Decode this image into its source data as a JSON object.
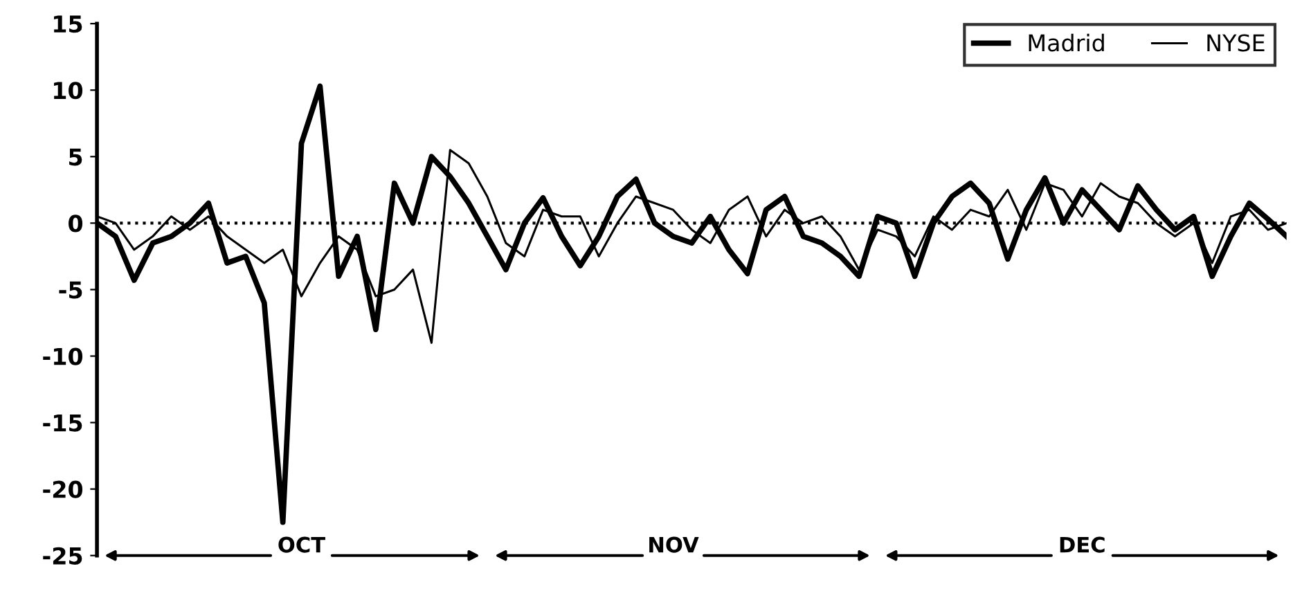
{
  "chart_data": {
    "type": "line",
    "categories": [
      null,
      null,
      null,
      null,
      null,
      null,
      null,
      null,
      null,
      null,
      null,
      "OCT",
      null,
      null,
      null,
      null,
      null,
      null,
      null,
      null,
      null,
      null,
      null,
      null,
      null,
      null,
      null,
      null,
      null,
      null,
      null,
      "NOV",
      null,
      null,
      null,
      null,
      null,
      null,
      null,
      null,
      null,
      null,
      null,
      null,
      null,
      null,
      null,
      null,
      null,
      null,
      null,
      null,
      null,
      "DEC",
      null,
      null,
      null,
      null,
      null,
      null,
      null,
      null,
      null,
      null,
      null
    ],
    "series": [
      {
        "name": "Madrid",
        "color": "#000000",
        "values": [
          0,
          -1,
          -4.3,
          -1.5,
          -1,
          0,
          1.5,
          -3,
          -2.5,
          -6,
          -22.5,
          6,
          10.3,
          -4,
          -1,
          -8,
          3,
          0,
          5,
          3.5,
          1.5,
          -1,
          -3.5,
          0,
          1.9,
          -1,
          -3.2,
          -1,
          2,
          3.3,
          0,
          -1,
          -1.5,
          0.5,
          -2,
          -3.8,
          1,
          2,
          -1,
          -1.5,
          -2.5,
          -4,
          0.5,
          0,
          -4,
          0,
          2,
          3,
          1.5,
          -2.7,
          1,
          3.4,
          0,
          2.5,
          1,
          -0.5,
          2.8,
          1,
          -0.5,
          0.5,
          -4,
          -1,
          1.5,
          0.3,
          -1
        ]
      },
      {
        "name": "NYSE",
        "color": "#000000",
        "values": [
          0.5,
          0,
          -2,
          -1,
          0.5,
          -0.5,
          0.5,
          -1,
          -2,
          -3,
          -2,
          -5.5,
          -3,
          -1,
          -2,
          -5.5,
          -5,
          -3.5,
          -9,
          5.5,
          4.5,
          2,
          -1.5,
          -2.5,
          1,
          0.5,
          0.5,
          -2.5,
          0,
          2,
          1.5,
          1,
          -0.5,
          -1.5,
          1,
          2,
          -1,
          1,
          0,
          0.5,
          -1,
          -3.5,
          -0.5,
          -1,
          -2.5,
          0.5,
          -0.5,
          1,
          0.5,
          2.5,
          -0.5,
          3,
          2.5,
          0.5,
          3,
          2,
          1.5,
          0,
          -1,
          0,
          -3,
          0.5,
          1,
          -0.5,
          0
        ]
      }
    ],
    "ylim": [
      -25,
      15
    ],
    "yticks": [
      -25,
      -20,
      -15,
      -10,
      -5,
      0,
      5,
      10,
      15
    ],
    "ref_lines": [
      {
        "axis": "y",
        "value": 0,
        "line_style": "dotted",
        "color": "#000000"
      }
    ],
    "legend": "top right",
    "grid": false,
    "line_style": "solid",
    "marker": "none"
  }
}
